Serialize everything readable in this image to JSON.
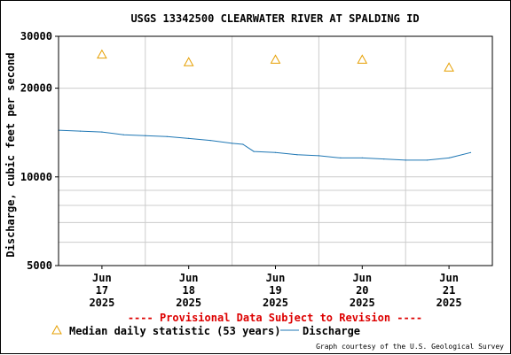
{
  "chart_data": {
    "type": "line",
    "title": "USGS 13342500 CLEARWATER RIVER AT SPALDING ID",
    "ylabel": "Discharge, cubic feet per second",
    "yscale": "log",
    "ylim": [
      5000,
      30000
    ],
    "y_ticks": [
      {
        "value": 5000,
        "label": "5000"
      },
      {
        "value": 10000,
        "label": "10000"
      },
      {
        "value": 20000,
        "label": "20000"
      },
      {
        "value": 30000,
        "label": "30000"
      }
    ],
    "y_minor_grid": [
      6000,
      7000,
      8000,
      9000
    ],
    "xlim": [
      "2025-06-16T12:00",
      "2025-06-21T12:00"
    ],
    "x_ticks": [
      {
        "at": "2025-06-17T00:00",
        "month": "Jun",
        "day": "17",
        "year": "2025"
      },
      {
        "at": "2025-06-18T00:00",
        "month": "Jun",
        "day": "18",
        "year": "2025"
      },
      {
        "at": "2025-06-19T00:00",
        "month": "Jun",
        "day": "19",
        "year": "2025"
      },
      {
        "at": "2025-06-20T00:00",
        "month": "Jun",
        "day": "20",
        "year": "2025"
      },
      {
        "at": "2025-06-21T00:00",
        "month": "Jun",
        "day": "21",
        "year": "2025"
      }
    ],
    "x_grid": [
      "2025-06-17T12:00",
      "2025-06-18T12:00",
      "2025-06-19T12:00",
      "2025-06-20T12:00"
    ],
    "series": [
      {
        "name": "Discharge",
        "color": "#1f77b4",
        "style": "line",
        "x": [
          "2025-06-16T12:00",
          "2025-06-16T18:00",
          "2025-06-17T00:00",
          "2025-06-17T06:00",
          "2025-06-17T12:00",
          "2025-06-17T18:00",
          "2025-06-18T00:00",
          "2025-06-18T06:00",
          "2025-06-18T12:00",
          "2025-06-18T15:00",
          "2025-06-18T18:00",
          "2025-06-19T00:00",
          "2025-06-19T06:00",
          "2025-06-19T12:00",
          "2025-06-19T18:00",
          "2025-06-20T00:00",
          "2025-06-20T06:00",
          "2025-06-20T12:00",
          "2025-06-20T18:00",
          "2025-06-21T00:00",
          "2025-06-21T06:00"
        ],
        "values": [
          14400,
          14300,
          14200,
          13900,
          13800,
          13700,
          13500,
          13300,
          13000,
          12900,
          12200,
          12100,
          11900,
          11800,
          11600,
          11600,
          11500,
          11400,
          11400,
          11600,
          12100
        ]
      },
      {
        "name": "Median daily statistic (53 years)",
        "color": "#e69f00",
        "style": "triangle",
        "x": [
          "2025-06-17T00:00",
          "2025-06-18T00:00",
          "2025-06-19T00:00",
          "2025-06-20T00:00",
          "2025-06-21T00:00"
        ],
        "values": [
          26000,
          24500,
          25000,
          25000,
          23500
        ]
      }
    ]
  },
  "notice": "---- Provisional Data Subject to Revision ----",
  "notice_color": "#dd0000",
  "legend": {
    "median_label": "Median daily statistic (53 years)",
    "discharge_label": "Discharge"
  },
  "credit": "Graph courtesy of the U.S. Geological Survey"
}
